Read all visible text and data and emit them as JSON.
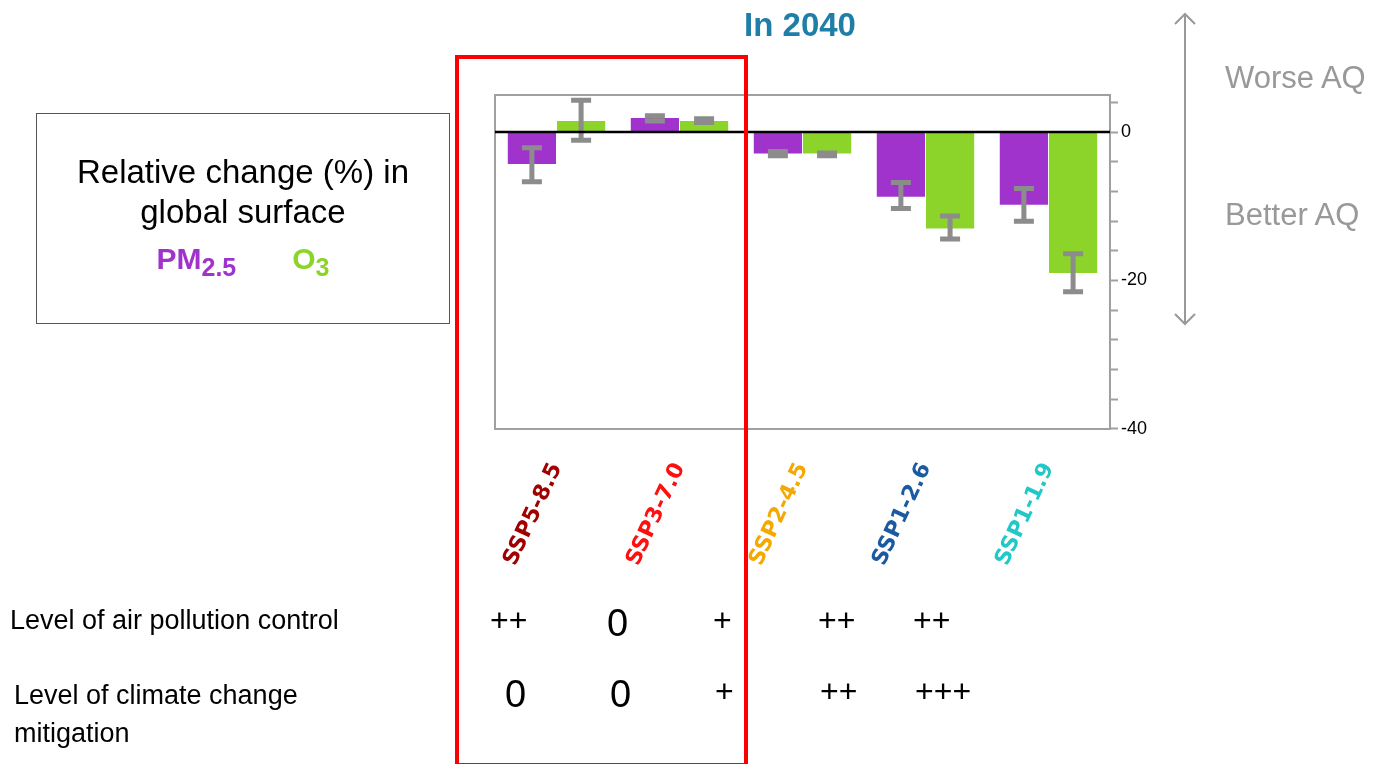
{
  "chart_data": {
    "type": "bar",
    "title": "In 2040",
    "legend_title": "Relative change (%) in global surface",
    "legend": "left",
    "categories": [
      "SSP5-8.5",
      "SSP3-7.0",
      "SSP2-4.5",
      "SSP1-2.6",
      "SSP1-1.9"
    ],
    "series": [
      {
        "name": "PM$_{2.5}$",
        "color": "#a033cc",
        "values": [
          -4.3,
          1.9,
          -2.9,
          -8.7,
          -9.8
        ],
        "errors": [
          [
            -6.7,
            -2.1
          ],
          [
            1.5,
            2.2
          ],
          [
            -3.2,
            -2.6
          ],
          [
            -10.3,
            -6.8
          ],
          [
            -12.0,
            -7.6
          ]
        ]
      },
      {
        "name": "O$_{3}$",
        "color": "#8cd42a",
        "values": [
          1.5,
          1.5,
          -2.9,
          -13.0,
          -19.0
        ],
        "errors": [
          [
            -1.1,
            4.3
          ],
          [
            1.3,
            1.8
          ],
          [
            -3.2,
            -2.8
          ],
          [
            -14.4,
            -11.3
          ],
          [
            -21.5,
            -16.4
          ]
        ]
      }
    ],
    "ylim": [
      -40,
      5
    ],
    "yticks": [
      {
        "value": 4,
        "label": null
      },
      0,
      {
        "value": -4,
        "label": null
      },
      {
        "value": -8,
        "label": null
      },
      {
        "value": -12,
        "label": null
      },
      {
        "value": -16,
        "label": null
      },
      -20,
      {
        "value": -24,
        "label": null
      },
      {
        "value": -28,
        "label": null
      },
      {
        "value": -32,
        "label": null
      },
      {
        "value": -36,
        "label": null
      },
      -40
    ],
    "ref_lines": [
      {
        "axis": "y",
        "value": 0,
        "color": "#000000"
      }
    ],
    "grid": false,
    "annotations": [
      "Worse AQ",
      "Better AQ",
      "Level of air pollution control",
      "++",
      "0",
      "+",
      "++",
      "++",
      "Level of climate change mitigation",
      "0",
      "0",
      "+",
      "++",
      "+++"
    ]
  }
}
